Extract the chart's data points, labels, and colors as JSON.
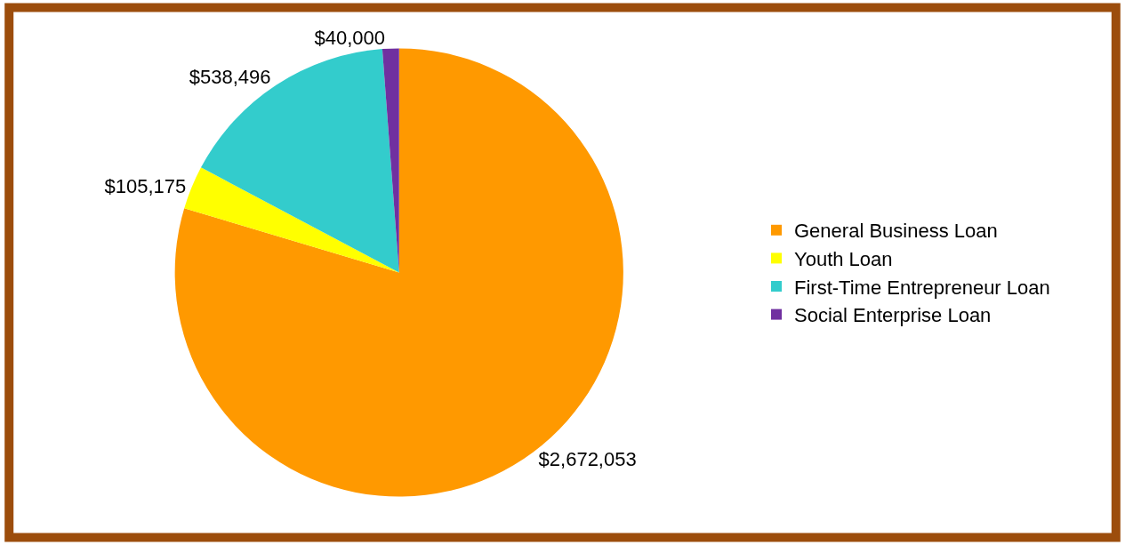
{
  "chart_data": {
    "type": "pie",
    "categories": [
      "General Business Loan",
      "Youth Loan",
      "First-Time Entrepreneur Loan",
      "Social Enterprise Loan"
    ],
    "values": [
      2672053,
      105175,
      538496,
      40000
    ],
    "value_labels": [
      "$2,672,053",
      "$105,175",
      "$538,496",
      "$40,000"
    ],
    "colors": [
      "#ff9900",
      "#ffff00",
      "#33cccc",
      "#7030a0"
    ],
    "legend": "right"
  }
}
